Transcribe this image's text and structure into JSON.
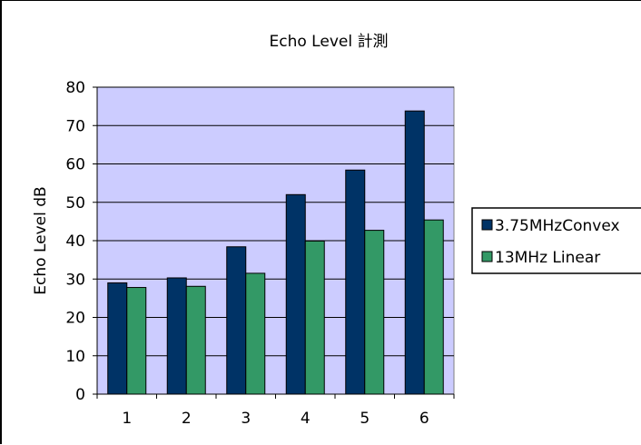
{
  "chart_data": {
    "type": "bar",
    "title": "Echo Level 計測",
    "xlabel": "",
    "ylabel": "Echo Level dB",
    "categories": [
      "1",
      "2",
      "3",
      "4",
      "5",
      "6"
    ],
    "ylim": [
      0,
      80
    ],
    "yticks": [
      0,
      10,
      20,
      30,
      40,
      50,
      60,
      70,
      80
    ],
    "grid": true,
    "legend": "right",
    "plot_background": "#ccccff",
    "series": [
      {
        "name": "3.75MHzConvex",
        "color": "#003366",
        "values": [
          29,
          30.3,
          38.4,
          52,
          58.4,
          73.8
        ]
      },
      {
        "name": "13MHz Linear",
        "color": "#339966",
        "values": [
          27.8,
          28.1,
          31.5,
          39.9,
          42.7,
          45.4
        ]
      }
    ]
  }
}
